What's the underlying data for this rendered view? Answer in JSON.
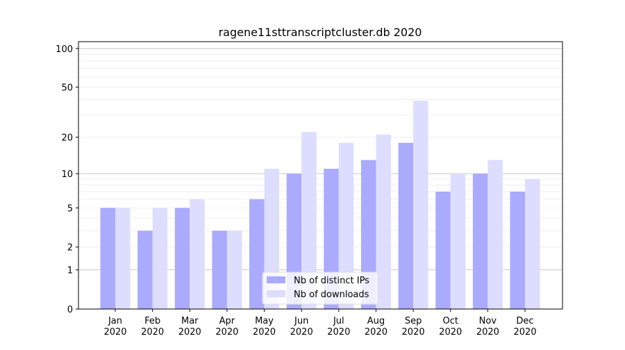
{
  "chart_data": {
    "type": "bar",
    "title": "ragene11sttranscriptcluster.db 2020",
    "xlabel": "",
    "ylabel": "",
    "yscale": "log(1+y)",
    "ylim": [
      0,
      113
    ],
    "yticks": [
      0,
      1,
      2,
      5,
      10,
      20,
      50,
      100
    ],
    "grid": true,
    "legend_position": "lower center",
    "categories": [
      "Jan\n2020",
      "Feb\n2020",
      "Mar\n2020",
      "Apr\n2020",
      "May\n2020",
      "Jun\n2020",
      "Jul\n2020",
      "Aug\n2020",
      "Sep\n2020",
      "Oct\n2020",
      "Nov\n2020",
      "Dec\n2020"
    ],
    "series": [
      {
        "name": "Nb of distinct IPs",
        "color": "#aaaaff",
        "values": [
          5,
          3,
          5,
          3,
          6,
          10,
          11,
          13,
          18,
          7,
          10,
          7
        ]
      },
      {
        "name": "Nb of downloads",
        "color": "#ddddff",
        "values": [
          5,
          5,
          6,
          3,
          11,
          22,
          18,
          21,
          39,
          10,
          13,
          9
        ]
      }
    ]
  }
}
